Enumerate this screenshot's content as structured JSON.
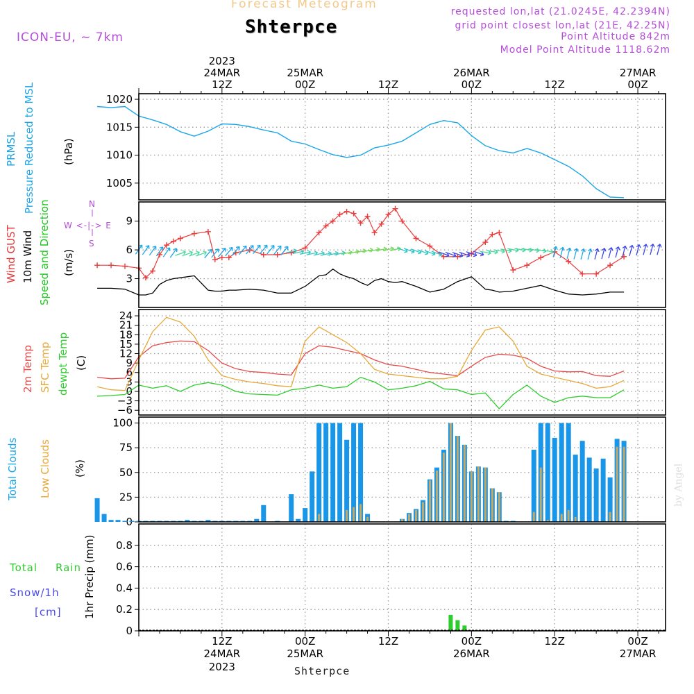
{
  "header": {
    "title": "Forecast Meteogram",
    "station": "Shterpce",
    "model": "ICON-EU,  ~ 7km",
    "requested": "requested lon,lat (21.0245E, 42.2394N)",
    "grid_point": "grid point closest lon,lat (21E, 42.25N)",
    "point_altitude": "Point Altitude 842m",
    "model_altitude": "Model Point Altitude 1118.62m"
  },
  "top_time_labels": [
    {
      "year": "2023",
      "day": "24MAR",
      "hour": "12Z"
    },
    {
      "day": "25MAR",
      "hour": "00Z"
    },
    {
      "hour": "12Z"
    },
    {
      "day": "26MAR",
      "hour": "00Z"
    },
    {
      "hour": "12Z"
    },
    {
      "day": "27MAR",
      "hour": "00Z"
    }
  ],
  "bottom_time_labels": [
    {
      "hour": "12Z",
      "day": "24MAR",
      "year": "2023"
    },
    {
      "hour": "00Z",
      "day": "25MAR"
    },
    {
      "hour": "12Z"
    },
    {
      "hour": "00Z",
      "day": "26MAR"
    },
    {
      "hour": "12Z"
    },
    {
      "hour": "00Z",
      "day": "27MAR"
    }
  ],
  "footer_station": "Shterpce",
  "watermark": "by Angel",
  "labels": {
    "prmsl_line1": "PRMSL",
    "prmsl_line2": "Pressure Reduced to MSL",
    "prmsl_unit": "(hPa)",
    "wind_gust": "Wind GUST",
    "wind_10m": "10m Wind",
    "wind_speed_dir": "Speed and Direction",
    "wind_unit": "(m/s)",
    "compass_n": "N",
    "compass_we": "W <-|-> E",
    "compass_s": "S",
    "temp_2m": "2m Temp",
    "temp_sfc": "SFC Temp",
    "temp_dewpt": "dewpt Temp",
    "temp_unit": "(C)",
    "clouds_total": "Total Clouds",
    "clouds_low": "Low Clouds",
    "clouds_unit": "(%)",
    "precip_total": "Total",
    "precip_rain": "Rain",
    "precip_snow": "Snow/1h",
    "precip_cm": "[cm]",
    "precip_unit": "1hr Precip (mm)"
  },
  "colors": {
    "pressure": "#1aa6e8",
    "gust": "#e83a3a",
    "wind10m": "#000000",
    "temp2m": "#e84a4a",
    "sfc": "#e8a83a",
    "dewpt": "#2ecc2e",
    "total_clouds": "#1a96e8",
    "low_clouds": "#c8a860",
    "rain": "#2ecc2e",
    "snow": "#4a4ae8",
    "title": "#f2c98a",
    "info": "#b44cd8"
  },
  "chart_data": [
    {
      "type": "line",
      "name": "PRMSL",
      "ylabel": "Pressure Reduced to MSL (hPa)",
      "ylim": [
        1002,
        1021
      ],
      "yticks": [
        1005,
        1010,
        1015,
        1020
      ],
      "x_hours": [
        0,
        2,
        4,
        6,
        8,
        10,
        12,
        14,
        16,
        18,
        20,
        22,
        24,
        26,
        28,
        30,
        32,
        34,
        36,
        38,
        40,
        42,
        44,
        46,
        48,
        50,
        52,
        54,
        56,
        58,
        60,
        62,
        64,
        66,
        68,
        70,
        72,
        74,
        76
      ],
      "values": [
        1018.7,
        1018.5,
        1018.7,
        1017.0,
        1016.3,
        1015.5,
        1014.2,
        1013.4,
        1014.3,
        1015.6,
        1015.5,
        1015.1,
        1014.5,
        1014.0,
        1012.5,
        1012.0,
        1011.0,
        1010.1,
        1009.6,
        1010.0,
        1011.3,
        1011.8,
        1012.5,
        1014.0,
        1015.5,
        1016.2,
        1015.8,
        1013.5,
        1011.7,
        1010.8,
        1010.4,
        1011.2,
        1010.4,
        1009.2,
        1008.0,
        1006.3,
        1004.0,
        1002.5,
        1002.4
      ]
    },
    {
      "type": "line",
      "name": "Wind",
      "ylabel": "(m/s)",
      "ylim": [
        0,
        11
      ],
      "yticks": [
        3,
        6,
        9
      ],
      "x_hours": [
        0,
        2,
        4,
        6,
        7,
        8,
        9,
        10,
        11,
        12,
        14,
        16,
        17,
        18,
        19,
        20,
        22,
        24,
        26,
        28,
        30,
        32,
        33,
        34,
        35,
        36,
        37,
        38,
        39,
        40,
        41,
        42,
        43,
        44,
        46,
        48,
        50,
        52,
        54,
        56,
        57,
        58,
        60,
        62,
        64,
        66,
        68,
        70,
        72,
        74,
        76
      ],
      "series": [
        {
          "name": "Wind GUST",
          "values": [
            4.4,
            4.4,
            4.3,
            4.1,
            3.1,
            3.8,
            5.5,
            6.5,
            6.9,
            7.2,
            7.7,
            7.9,
            5.0,
            5.2,
            5.2,
            5.7,
            6.0,
            5.5,
            5.5,
            5.7,
            6.2,
            7.8,
            8.5,
            9.0,
            9.7,
            10.0,
            9.8,
            8.8,
            9.5,
            7.8,
            8.7,
            9.7,
            10.3,
            9.0,
            7.2,
            6.4,
            5.3,
            5.3,
            5.6,
            6.8,
            7.6,
            7.8,
            3.9,
            4.4,
            5.2,
            5.8,
            4.8,
            3.5,
            3.5,
            4.4,
            5.3
          ]
        },
        {
          "name": "10m Wind",
          "values": [
            2.0,
            2.0,
            1.9,
            1.3,
            1.3,
            1.5,
            2.4,
            2.8,
            3.0,
            3.1,
            3.3,
            1.8,
            1.7,
            1.7,
            1.8,
            1.8,
            1.9,
            1.8,
            1.5,
            1.5,
            2.2,
            3.3,
            3.4,
            4.0,
            3.5,
            3.2,
            3.0,
            2.6,
            2.3,
            2.8,
            3.0,
            2.7,
            2.6,
            2.7,
            2.2,
            1.6,
            1.9,
            2.7,
            3.2,
            1.9,
            1.8,
            1.6,
            1.7,
            2.0,
            2.3,
            1.8,
            1.4,
            1.3,
            1.4,
            1.6,
            1.6
          ]
        }
      ]
    },
    {
      "type": "line",
      "name": "Temperature",
      "ylabel": "(C)",
      "ylim": [
        -7.5,
        26
      ],
      "yticks": [
        -6,
        -3,
        0,
        3,
        6,
        9,
        12,
        15,
        18,
        21,
        24
      ],
      "x_hours": [
        0,
        2,
        4,
        6,
        8,
        10,
        12,
        14,
        16,
        18,
        20,
        22,
        24,
        26,
        28,
        30,
        32,
        34,
        36,
        38,
        40,
        42,
        44,
        46,
        48,
        50,
        52,
        54,
        56,
        58,
        60,
        62,
        64,
        66,
        68,
        70,
        72,
        74,
        76
      ],
      "series": [
        {
          "name": "2m Temp",
          "values": [
            4.5,
            4.0,
            4.2,
            11.0,
            14.5,
            15.5,
            16.0,
            15.8,
            13.0,
            9.0,
            7.2,
            6.3,
            6.0,
            5.5,
            5.2,
            12.0,
            14.5,
            14.0,
            13.0,
            12.0,
            10.0,
            8.5,
            8.0,
            7.0,
            6.0,
            5.5,
            5.0,
            8.0,
            10.8,
            11.8,
            11.5,
            10.5,
            8.0,
            6.5,
            6.2,
            6.3,
            5.0,
            4.8,
            6.5
          ]
        },
        {
          "name": "SFC Temp",
          "values": [
            1.5,
            0.5,
            0.3,
            10.0,
            19.0,
            23.5,
            22.0,
            17.5,
            10.0,
            5.0,
            3.8,
            3.0,
            2.5,
            1.8,
            1.5,
            16.0,
            20.5,
            18.0,
            15.5,
            12.0,
            7.0,
            5.5,
            5.0,
            4.5,
            4.0,
            4.0,
            4.8,
            13.0,
            19.5,
            20.5,
            16.0,
            8.0,
            5.5,
            4.5,
            3.5,
            2.5,
            1.0,
            1.5,
            3.5
          ]
        },
        {
          "name": "dewpt Temp",
          "values": [
            -1.5,
            -1.3,
            -1.0,
            2.0,
            1.0,
            1.8,
            0.0,
            2.0,
            2.8,
            2.0,
            0.0,
            -0.8,
            -1.0,
            -1.2,
            0.5,
            1.0,
            2.0,
            1.0,
            1.5,
            4.5,
            3.0,
            0.5,
            1.0,
            1.8,
            3.2,
            0.8,
            0.5,
            -1.0,
            -0.5,
            -5.5,
            -1.0,
            2.0,
            -1.5,
            -3.5,
            -2.0,
            -1.5,
            -2.0,
            -2.0,
            0.5
          ]
        }
      ]
    },
    {
      "type": "bar",
      "name": "Clouds",
      "ylabel": "(%)",
      "ylim": [
        0,
        106
      ],
      "yticks": [
        0,
        25,
        50,
        75,
        100
      ],
      "x_hours": [
        0,
        1,
        2,
        3,
        4,
        5,
        6,
        7,
        8,
        9,
        10,
        11,
        12,
        13,
        14,
        15,
        16,
        17,
        18,
        19,
        20,
        21,
        22,
        23,
        24,
        25,
        26,
        27,
        28,
        29,
        30,
        31,
        32,
        33,
        34,
        35,
        36,
        37,
        38,
        39,
        40,
        41,
        42,
        43,
        44,
        45,
        46,
        47,
        48,
        49,
        50,
        51,
        52,
        53,
        54,
        55,
        56,
        57,
        58,
        59,
        60,
        61,
        62,
        63,
        64,
        65,
        66,
        67,
        68,
        69,
        70,
        71,
        72,
        73,
        74,
        75,
        76
      ],
      "series": [
        {
          "name": "Total Clouds",
          "values": [
            24,
            8,
            2,
            2,
            1,
            1,
            1,
            1,
            1,
            1,
            1,
            1,
            1,
            2,
            1,
            1,
            2,
            1,
            1,
            1,
            1,
            1,
            1,
            3,
            17,
            0,
            1,
            0,
            28,
            3,
            14,
            51,
            100,
            100,
            100,
            100,
            83,
            100,
            100,
            8,
            0,
            0,
            0,
            0,
            3,
            9,
            13,
            22,
            43,
            55,
            73,
            100,
            87,
            78,
            51,
            56,
            55,
            34,
            30,
            1,
            1,
            0,
            0,
            73,
            100,
            100,
            85,
            100,
            100,
            68,
            82,
            65,
            54,
            64,
            45,
            84,
            82
          ]
        },
        {
          "name": "Low Clouds",
          "values": [
            0,
            0,
            0,
            0,
            0,
            0,
            0,
            0,
            0,
            0,
            0,
            0,
            0,
            0,
            0,
            0,
            0,
            0,
            0,
            0,
            0,
            0,
            0,
            0,
            0,
            0,
            0,
            0,
            0,
            0,
            0,
            0,
            8,
            0,
            0,
            0,
            12,
            15,
            18,
            5,
            0,
            0,
            0,
            0,
            3,
            8,
            12,
            20,
            42,
            52,
            70,
            100,
            87,
            78,
            51,
            56,
            55,
            34,
            30,
            0,
            0,
            0,
            0,
            10,
            55,
            2,
            0,
            8,
            12,
            5,
            0,
            0,
            0,
            0,
            10,
            76,
            76
          ]
        }
      ]
    },
    {
      "type": "bar",
      "name": "Precip",
      "ylabel": "1hr Precip (mm)",
      "ylim": [
        0,
        1.0
      ],
      "yticks": [
        0,
        0.2,
        0.4,
        0.6,
        0.8
      ],
      "x_hours": [
        51,
        52,
        53
      ],
      "series": [
        {
          "name": "Rain",
          "values": [
            0.15,
            0.1,
            0.05
          ]
        }
      ]
    }
  ]
}
